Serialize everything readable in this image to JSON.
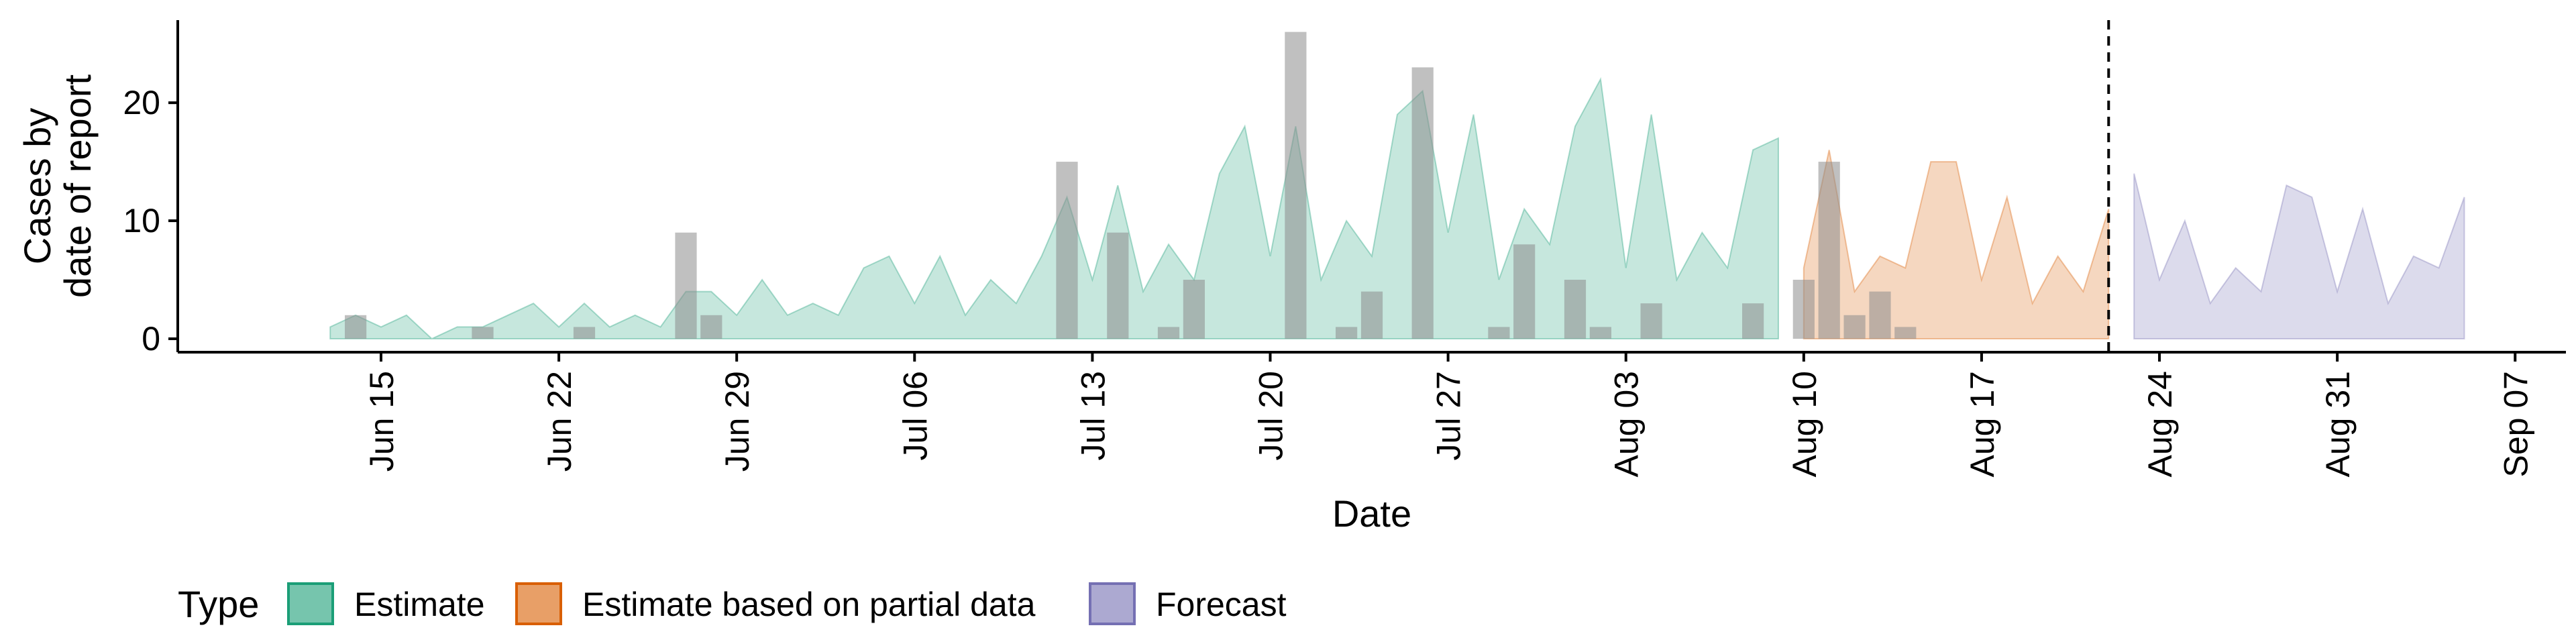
{
  "chart_data": {
    "type": "area",
    "xlabel": "Date",
    "ylabel_lines": [
      "Cases by",
      "date of report"
    ],
    "ylim": [
      0,
      27
    ],
    "yticks": [
      0,
      10,
      20
    ],
    "xlim": [
      "2020-06-07",
      "2020-09-09"
    ],
    "xticks": [
      {
        "date": "2020-06-15",
        "label": "Jun 15"
      },
      {
        "date": "2020-06-22",
        "label": "Jun 22"
      },
      {
        "date": "2020-06-29",
        "label": "Jun 29"
      },
      {
        "date": "2020-07-06",
        "label": "Jul 06"
      },
      {
        "date": "2020-07-13",
        "label": "Jul 13"
      },
      {
        "date": "2020-07-20",
        "label": "Jul 20"
      },
      {
        "date": "2020-07-27",
        "label": "Jul 27"
      },
      {
        "date": "2020-08-03",
        "label": "Aug 03"
      },
      {
        "date": "2020-08-10",
        "label": "Aug 10"
      },
      {
        "date": "2020-08-17",
        "label": "Aug 17"
      },
      {
        "date": "2020-08-24",
        "label": "Aug 24"
      },
      {
        "date": "2020-08-31",
        "label": "Aug 31"
      },
      {
        "date": "2020-09-07",
        "label": "Sep 07"
      }
    ],
    "forecast_start": "2020-08-22",
    "grid": false,
    "legend": {
      "title": "Type",
      "position": "bottom"
    },
    "series": [
      {
        "name": "Estimate",
        "color": "#1b9e77",
        "start": "2020-06-13",
        "upper": [
          1,
          2,
          1,
          2,
          0,
          1,
          1,
          2,
          3,
          1,
          3,
          1,
          2,
          1,
          4,
          4,
          2,
          5,
          2,
          3,
          2,
          6,
          7,
          3,
          7,
          2,
          5,
          3,
          7,
          12,
          5,
          13,
          4,
          8,
          5,
          14,
          18,
          7,
          18,
          5,
          10,
          7,
          19,
          21,
          9,
          19,
          5,
          11,
          8,
          18,
          22,
          6,
          19,
          5,
          9,
          6,
          16,
          17
        ],
        "lower": [
          0,
          0,
          0,
          0,
          0,
          0,
          0,
          0,
          0,
          0,
          0,
          0,
          0,
          0,
          0,
          0,
          0,
          0,
          0,
          0,
          0,
          0,
          0,
          0,
          0,
          0,
          0,
          0,
          0,
          0,
          0,
          0,
          0,
          0,
          0,
          0,
          0,
          0,
          0,
          0,
          0,
          0,
          0,
          0,
          0,
          0,
          0,
          0,
          0,
          0,
          0,
          0,
          0,
          0,
          0,
          0,
          0,
          0
        ]
      },
      {
        "name": "Estimate based on partial data",
        "color": "#d95f02",
        "start": "2020-08-10",
        "upper": [
          6,
          16,
          4,
          7,
          6,
          15,
          15,
          5,
          12,
          3,
          7,
          4,
          11
        ],
        "lower": [
          0,
          0,
          0,
          0,
          0,
          0,
          0,
          0,
          0,
          0,
          0,
          0,
          0
        ]
      },
      {
        "name": "Forecast",
        "color": "#7570b3",
        "start": "2020-08-23",
        "upper": [
          14,
          5,
          10,
          3,
          6,
          4,
          13,
          12,
          4,
          11,
          3,
          7,
          6,
          12
        ],
        "lower": [
          0,
          0,
          0,
          0,
          0,
          0,
          0,
          0,
          0,
          0,
          0,
          0,
          0,
          0
        ]
      }
    ],
    "reported_cases": [
      {
        "date": "2020-06-14",
        "value": 2
      },
      {
        "date": "2020-06-19",
        "value": 1
      },
      {
        "date": "2020-06-23",
        "value": 1
      },
      {
        "date": "2020-06-27",
        "value": 9
      },
      {
        "date": "2020-06-28",
        "value": 2
      },
      {
        "date": "2020-07-12",
        "value": 15
      },
      {
        "date": "2020-07-14",
        "value": 9
      },
      {
        "date": "2020-07-16",
        "value": 1
      },
      {
        "date": "2020-07-17",
        "value": 5
      },
      {
        "date": "2020-07-21",
        "value": 26
      },
      {
        "date": "2020-07-23",
        "value": 1
      },
      {
        "date": "2020-07-24",
        "value": 4
      },
      {
        "date": "2020-07-26",
        "value": 23
      },
      {
        "date": "2020-07-29",
        "value": 1
      },
      {
        "date": "2020-07-30",
        "value": 8
      },
      {
        "date": "2020-08-01",
        "value": 5
      },
      {
        "date": "2020-08-02",
        "value": 1
      },
      {
        "date": "2020-08-04",
        "value": 3
      },
      {
        "date": "2020-08-08",
        "value": 3
      },
      {
        "date": "2020-08-10",
        "value": 5
      },
      {
        "date": "2020-08-11",
        "value": 15
      },
      {
        "date": "2020-08-12",
        "value": 2
      },
      {
        "date": "2020-08-13",
        "value": 4
      },
      {
        "date": "2020-08-14",
        "value": 1
      }
    ]
  }
}
